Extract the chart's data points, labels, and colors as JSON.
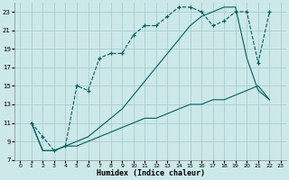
{
  "xlabel": "Humidex (Indice chaleur)",
  "background_color": "#cce8e8",
  "grid_color": "#aacece",
  "line_color": "#006060",
  "xlim": [
    -0.5,
    23.5
  ],
  "ylim": [
    7,
    24
  ],
  "yticks": [
    7,
    9,
    11,
    13,
    15,
    17,
    19,
    21,
    23
  ],
  "xticks": [
    0,
    1,
    2,
    3,
    4,
    5,
    6,
    7,
    8,
    9,
    10,
    11,
    12,
    13,
    14,
    15,
    16,
    17,
    18,
    19,
    20,
    21,
    22,
    23
  ],
  "line1_x": [
    1,
    2,
    3,
    4,
    5,
    6,
    7,
    8,
    9,
    10,
    11,
    12,
    13,
    14,
    15,
    16,
    17,
    18,
    19,
    20,
    21,
    22
  ],
  "line1_y": [
    11,
    9.5,
    8.0,
    8.5,
    15.0,
    14.5,
    18.0,
    18.5,
    18.5,
    20.5,
    21.5,
    21.5,
    22.5,
    23.5,
    23.5,
    23.0,
    21.5,
    22.0,
    23.0,
    23.0,
    17.5,
    23.0
  ],
  "line2_x": [
    1,
    2,
    3,
    4,
    5,
    6,
    7,
    8,
    9,
    10,
    11,
    12,
    13,
    14,
    15,
    16,
    17,
    18,
    19,
    20,
    21,
    22
  ],
  "line2_y": [
    11,
    8.0,
    8.0,
    8.5,
    8.5,
    9.0,
    9.5,
    10.0,
    10.5,
    11.0,
    11.5,
    11.5,
    12.0,
    12.5,
    13.0,
    13.0,
    13.5,
    13.5,
    14.0,
    14.5,
    15.0,
    13.5
  ],
  "line3_x": [
    1,
    2,
    3,
    4,
    5,
    6,
    7,
    8,
    9,
    10,
    11,
    12,
    13,
    14,
    15,
    16,
    17,
    18,
    19,
    20,
    21,
    22
  ],
  "line3_y": [
    11,
    8.0,
    8.0,
    8.5,
    9.0,
    9.5,
    10.5,
    11.5,
    12.5,
    14.0,
    15.5,
    17.0,
    18.5,
    20.0,
    21.5,
    22.5,
    23.0,
    23.5,
    23.5,
    18.0,
    14.5,
    13.5
  ]
}
